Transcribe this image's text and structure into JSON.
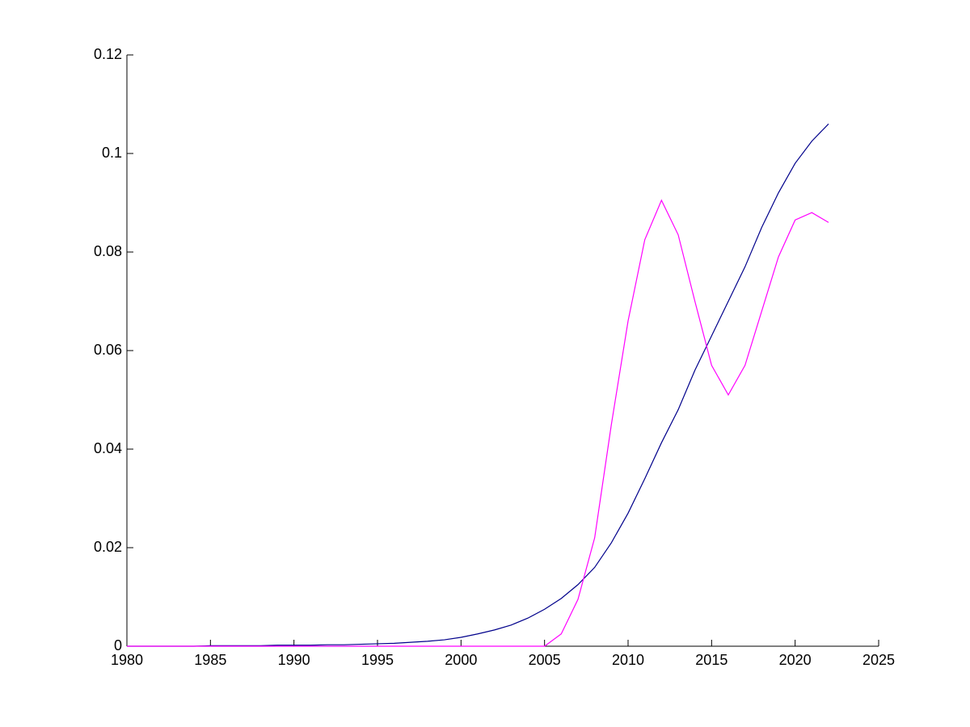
{
  "chart_data": {
    "type": "line",
    "x": [
      1980,
      1981,
      1982,
      1983,
      1984,
      1985,
      1986,
      1987,
      1988,
      1989,
      1990,
      1991,
      1992,
      1993,
      1994,
      1995,
      1996,
      1997,
      1998,
      1999,
      2000,
      2001,
      2002,
      2003,
      2004,
      2005,
      2006,
      2007,
      2008,
      2009,
      2010,
      2011,
      2012,
      2013,
      2014,
      2015,
      2016,
      2017,
      2018,
      2019,
      2020,
      2021,
      2022
    ],
    "series": [
      {
        "color": "#00008b",
        "values": [
          0,
          0,
          0,
          0,
          0,
          0.0001,
          0.0001,
          0.0001,
          0.0001,
          0.0002,
          0.0002,
          0.0002,
          0.0003,
          0.0003,
          0.0004,
          0.0005,
          0.0006,
          0.0008,
          0.001,
          0.0013,
          0.0018,
          0.0025,
          0.0033,
          0.0043,
          0.0057,
          0.0075,
          0.0097,
          0.0125,
          0.016,
          0.021,
          0.027,
          0.034,
          0.0413,
          0.048,
          0.056,
          0.063,
          0.07,
          0.077,
          0.085,
          0.092,
          0.098,
          0.1025,
          0.106
        ]
      },
      {
        "color": "#ff00ff",
        "values": [
          0,
          0,
          0,
          0,
          0,
          0,
          0,
          0,
          0,
          0,
          0,
          0,
          0,
          0,
          0,
          0,
          0,
          0,
          0,
          0,
          0,
          0,
          0,
          0,
          0,
          0,
          0.0025,
          0.0095,
          0.022,
          0.045,
          0.066,
          0.0825,
          0.0905,
          0.0835,
          0.07,
          0.057,
          0.051,
          0.057,
          0.068,
          0.079,
          0.0865,
          0.088,
          0.086
        ]
      }
    ],
    "xlim": [
      1980,
      2025
    ],
    "xticks": [
      1980,
      1985,
      1990,
      1995,
      2000,
      2005,
      2010,
      2015,
      2020,
      2025
    ],
    "ylim": [
      0,
      0.12
    ],
    "yticks": [
      0,
      0.02,
      0.04,
      0.06,
      0.08,
      0.1,
      0.12
    ]
  }
}
